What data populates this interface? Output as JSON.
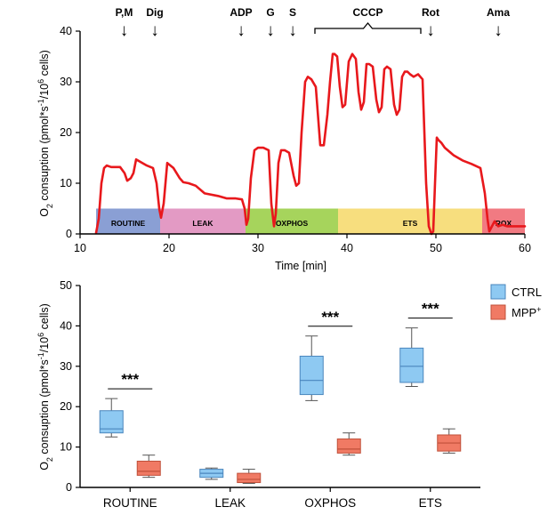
{
  "colors": {
    "trace": "#e8181c",
    "ctrl_fill": "#8ec9f2",
    "ctrl_stroke": "#4a86bd",
    "mpp_fill": "#f07a64",
    "mpp_stroke": "#c0503a",
    "axis": "#000000"
  },
  "chart_data": [
    {
      "type": "line",
      "xlabel": "Time [min]",
      "ylabel": {
        "base": "O",
        "sub1": "2",
        "mid": " consuption (pmol*s",
        "sup1": "-1",
        "mid2": "/10",
        "sup2": "6",
        "end": " cells)"
      },
      "xlim": [
        10,
        60
      ],
      "ylim": [
        0,
        40
      ],
      "x_ticks": [
        10,
        20,
        30,
        40,
        50,
        60
      ],
      "y_ticks": [
        0,
        10,
        20,
        30,
        40
      ],
      "arrow_glyph": "↓",
      "events": [
        {
          "label": "P",
          "x": 14.6
        },
        {
          "label": "M",
          "x": 15.3
        },
        {
          "label": "Dig",
          "x": 18.4
        },
        {
          "label": "ADP",
          "x": 28.1
        },
        {
          "label": "G",
          "x": 31.4
        },
        {
          "label": "S",
          "x": 33.9
        },
        {
          "label": "Rot",
          "x": 49.4
        },
        {
          "label": "Ama",
          "x": 57.0
        }
      ],
      "event_separator": ",",
      "bracket": {
        "label": "CCCP",
        "x_start": 36.4,
        "x_end": 48.3
      },
      "phases": [
        {
          "label": "ROUTINE",
          "x_start": 11.8,
          "x_end": 19.0,
          "color": "#8a9fd4"
        },
        {
          "label": "LEAK",
          "x_start": 19.0,
          "x_end": 28.6,
          "color": "#e39ac4"
        },
        {
          "label": "OXPHOS",
          "x_start": 28.6,
          "x_end": 39.0,
          "color": "#a6d45c"
        },
        {
          "label": "ETS",
          "x_start": 39.0,
          "x_end": 55.2,
          "color": "#f7de7e"
        },
        {
          "label": "ROX",
          "x_start": 55.2,
          "x_end": 60.0,
          "color": "#f17a82"
        }
      ],
      "phase_band": [
        0,
        5
      ],
      "series": [
        {
          "x": [
            11.8,
            12.1,
            12.4,
            12.7,
            13.0,
            13.5,
            14.5,
            15.0,
            15.3,
            15.7,
            16.0,
            16.3,
            17.5,
            18.2,
            18.6,
            18.9,
            19.1,
            19.4,
            19.8,
            20.5,
            21.2,
            21.6,
            22.2,
            23.0,
            24.0,
            25.5,
            26.5,
            27.5,
            28.2,
            28.5,
            28.7,
            28.9,
            29.2,
            29.6,
            30.0,
            30.6,
            31.2,
            31.5,
            31.8,
            32.0,
            32.3,
            32.6,
            33.0,
            33.5,
            34.0,
            34.3,
            34.6,
            34.9,
            35.3,
            35.6,
            36.0,
            36.5,
            37.0,
            37.4,
            37.8,
            38.1,
            38.4,
            38.6,
            38.9,
            39.2,
            39.5,
            39.8,
            40.2,
            40.6,
            41.0,
            41.3,
            41.6,
            41.9,
            42.2,
            42.5,
            42.9,
            43.3,
            43.6,
            43.9,
            44.2,
            44.5,
            44.9,
            45.3,
            45.6,
            45.9,
            46.2,
            46.5,
            46.8,
            47.1,
            47.5,
            48.0,
            48.5,
            48.9,
            49.2,
            49.5,
            49.7,
            49.9,
            50.1,
            50.3,
            50.6,
            51.0,
            52.0,
            53.0,
            54.0,
            55.0,
            55.5,
            55.8,
            56.0,
            56.3,
            56.6,
            57.0,
            57.5,
            58.0,
            59.0,
            60.0
          ],
          "y": [
            0.2,
            3.0,
            10.0,
            13.0,
            13.5,
            13.2,
            13.2,
            12.0,
            10.5,
            11.0,
            12.0,
            14.7,
            13.5,
            13.0,
            10.0,
            5.0,
            3.2,
            6.0,
            14.0,
            13.0,
            11.0,
            10.2,
            10.0,
            9.5,
            8.0,
            7.5,
            7.0,
            7.0,
            6.8,
            5.0,
            1.8,
            3.0,
            11.0,
            16.5,
            17.0,
            17.0,
            16.5,
            6.0,
            1.5,
            4.0,
            14.0,
            16.5,
            16.5,
            16.0,
            11.5,
            9.5,
            10.0,
            20.0,
            30.0,
            31.0,
            30.5,
            29.0,
            17.5,
            17.5,
            23.5,
            30.0,
            35.5,
            35.5,
            35.0,
            29.0,
            25.0,
            25.5,
            34.0,
            35.5,
            34.5,
            28.0,
            24.5,
            26.0,
            33.5,
            33.5,
            33.0,
            26.5,
            24.0,
            25.0,
            32.5,
            33.0,
            32.5,
            25.5,
            23.5,
            24.5,
            31.0,
            32.0,
            32.0,
            31.5,
            31.0,
            31.5,
            30.5,
            10.0,
            1.5,
            0.0,
            0.5,
            10.0,
            19.0,
            18.5,
            18.0,
            17.0,
            15.5,
            14.5,
            13.8,
            13.0,
            8.0,
            3.0,
            0.5,
            1.5,
            2.5,
            1.5,
            1.8,
            1.5,
            1.5,
            1.5
          ]
        }
      ]
    },
    {
      "type": "box",
      "ylabel": {
        "base": "O",
        "sub1": "2",
        "mid": " consuption (pmol*s",
        "sup1": "-1",
        "mid2": "/10",
        "sup2": "6",
        "end": " cells)"
      },
      "ylim": [
        0,
        50
      ],
      "y_ticks": [
        0,
        10,
        20,
        30,
        40,
        50
      ],
      "categories": [
        "ROUTINE",
        "LEAK",
        "OXPHOS",
        "ETS"
      ],
      "significance": [
        "***",
        "",
        "***",
        "***"
      ],
      "series": [
        {
          "name": "CTRL",
          "boxes": [
            {
              "min": 12.5,
              "q1": 13.5,
              "median": 14.5,
              "q3": 19.0,
              "max": 22.0
            },
            {
              "min": 2.0,
              "q1": 2.5,
              "median": 3.5,
              "q3": 4.5,
              "max": 4.8
            },
            {
              "min": 21.5,
              "q1": 23.0,
              "median": 26.5,
              "q3": 32.5,
              "max": 37.5
            },
            {
              "min": 25.0,
              "q1": 26.0,
              "median": 30.0,
              "q3": 34.5,
              "max": 39.5
            }
          ]
        },
        {
          "name": "MPP",
          "name_sup": "+",
          "boxes": [
            {
              "min": 2.5,
              "q1": 3.0,
              "median": 4.0,
              "q3": 6.5,
              "max": 8.0
            },
            {
              "min": 1.0,
              "q1": 1.2,
              "median": 2.0,
              "q3": 3.5,
              "max": 4.5
            },
            {
              "min": 8.0,
              "q1": 8.5,
              "median": 9.5,
              "q3": 12.0,
              "max": 13.5
            },
            {
              "min": 8.5,
              "q1": 9.0,
              "median": 11.0,
              "q3": 13.0,
              "max": 14.5
            }
          ]
        }
      ],
      "legend_position": "top-right"
    }
  ]
}
